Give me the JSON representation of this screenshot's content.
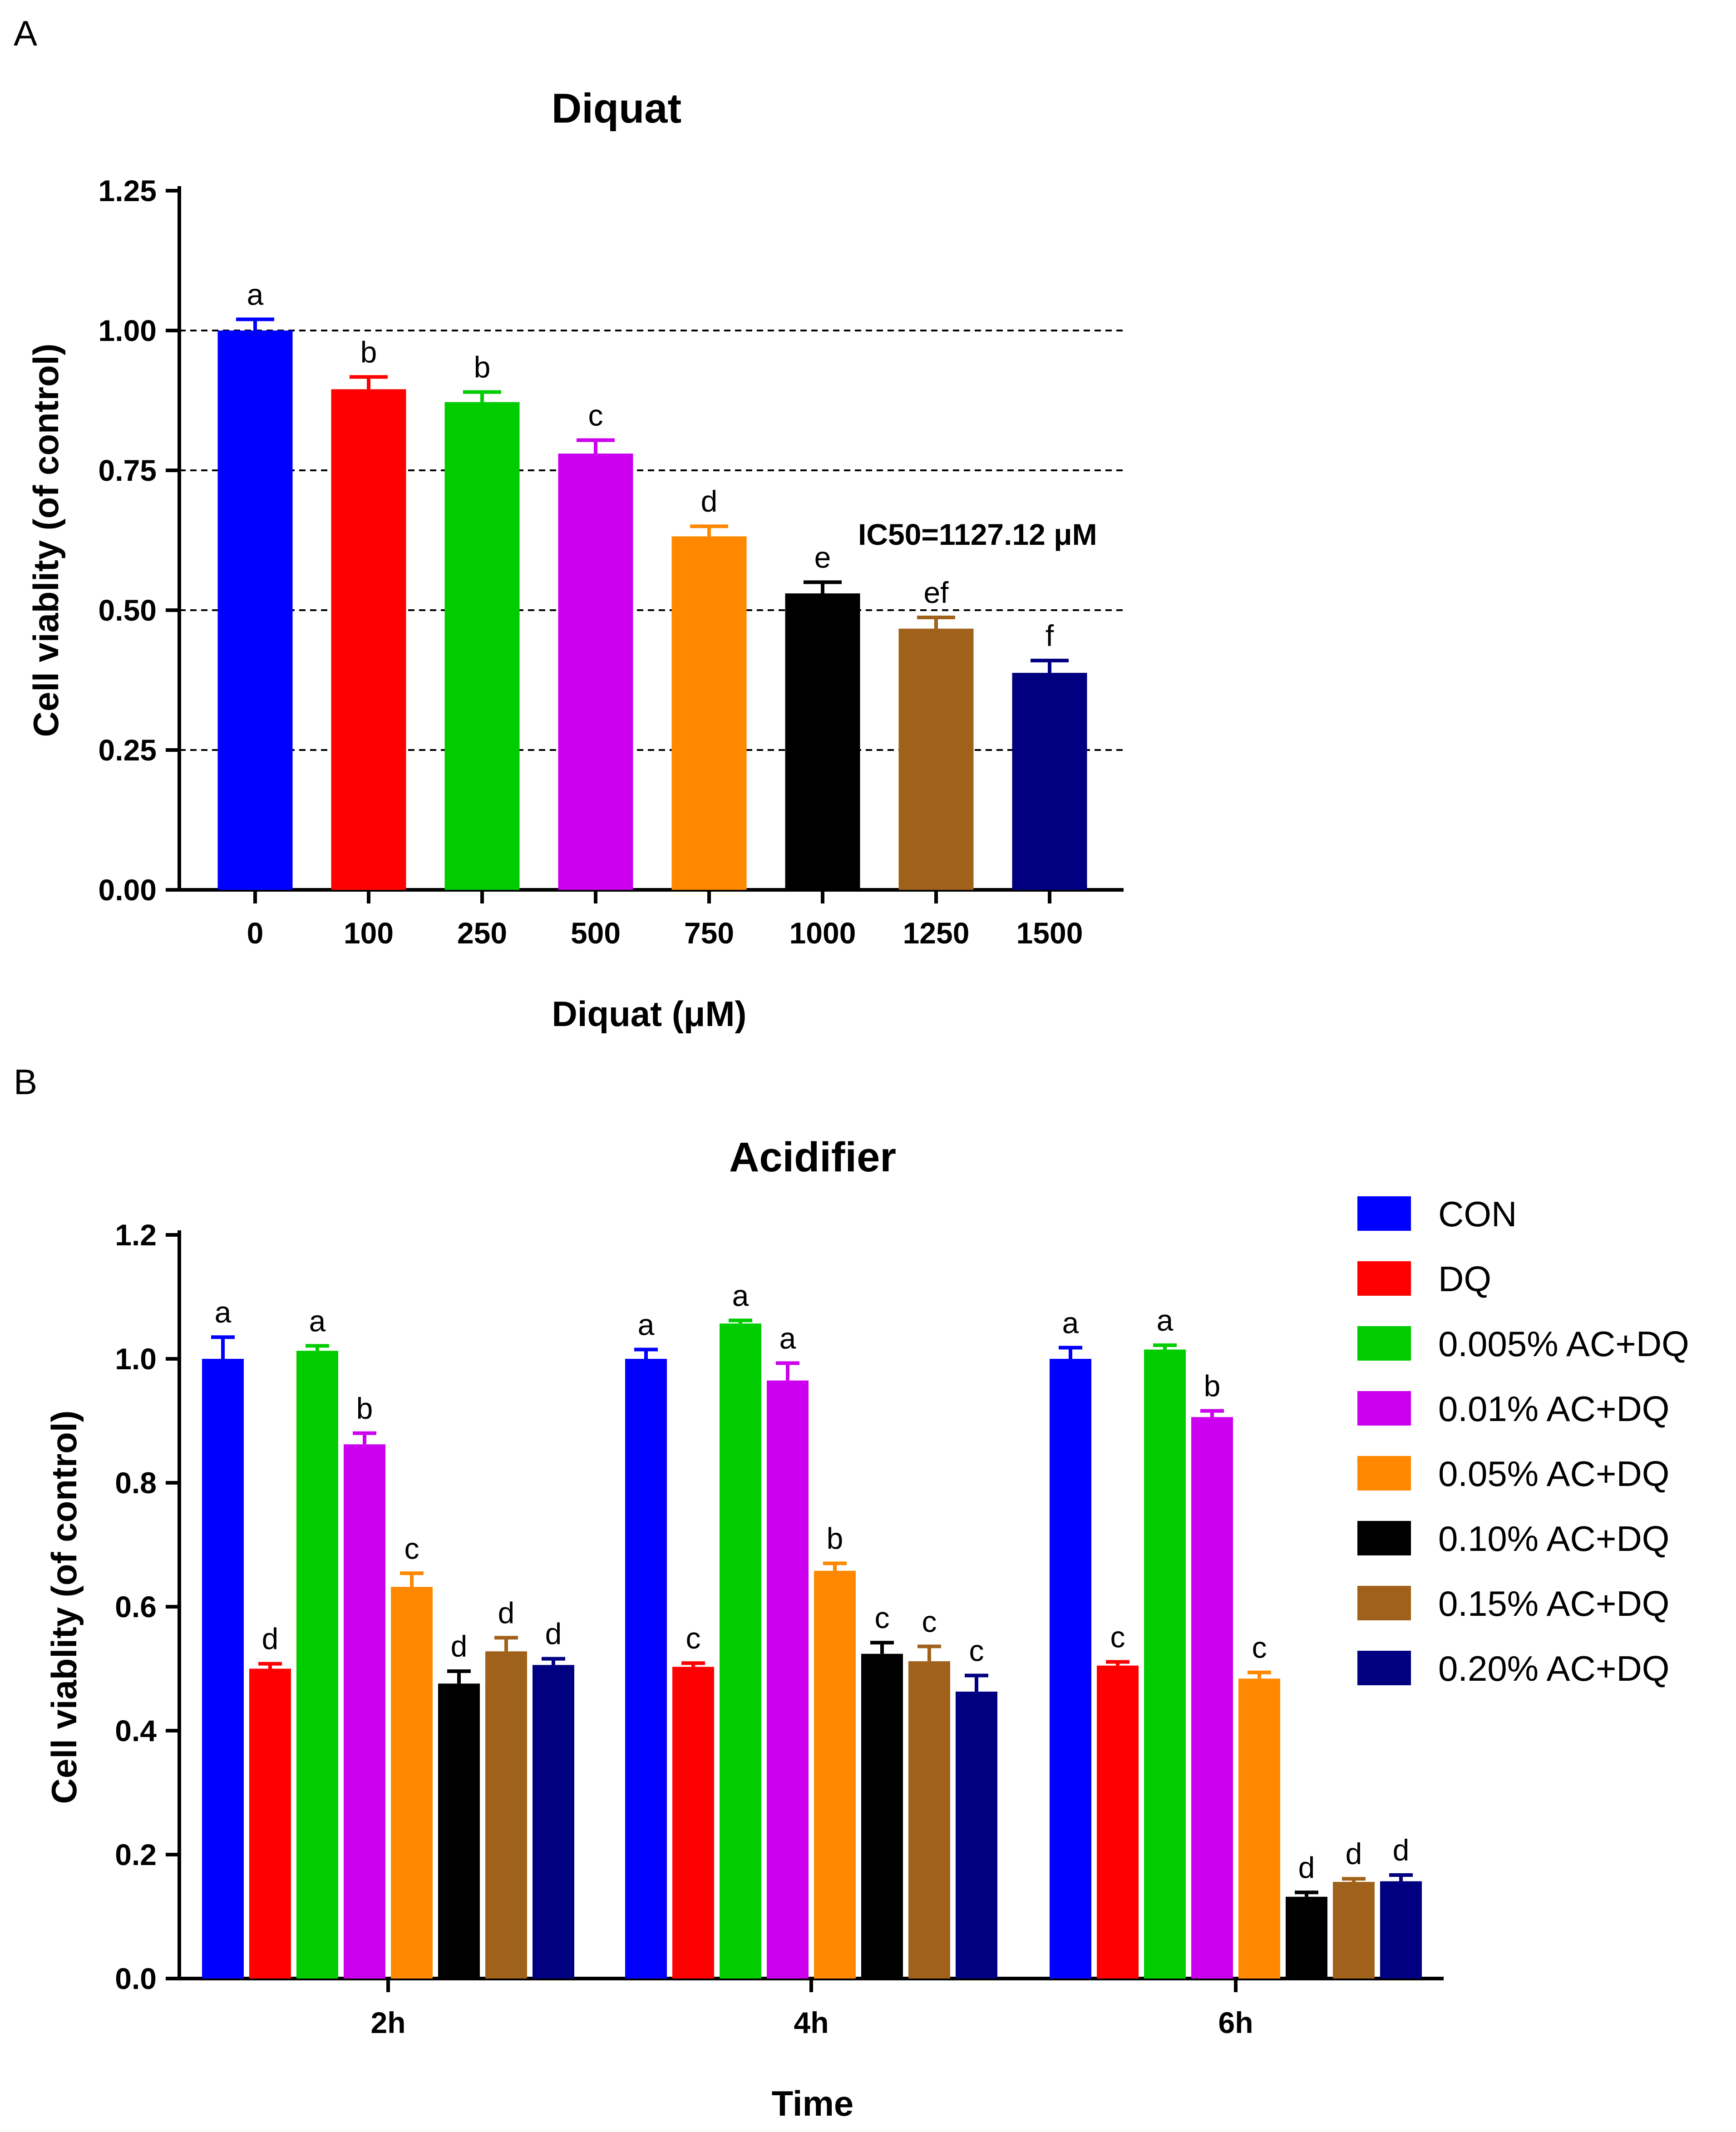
{
  "figure": {
    "panel_a_label": "A",
    "panel_b_label": "B"
  },
  "chart_data": [
    {
      "type": "bar",
      "title": "Diquat",
      "xlabel": "Diquat (μM)",
      "ylabel": "Cell viablity (of control)",
      "ylim": [
        0,
        1.25
      ],
      "yticks": [
        "0.00",
        "0.25",
        "0.50",
        "0.75",
        "1.00",
        "1.25"
      ],
      "grid": "dashed horizontal at 0.25, 0.50, 0.75, 1.00",
      "categories": [
        "0",
        "100",
        "250",
        "500",
        "750",
        "1000",
        "1250",
        "1500"
      ],
      "values": [
        1.0,
        0.895,
        0.872,
        0.78,
        0.632,
        0.53,
        0.467,
        0.388
      ],
      "errors": [
        0.02,
        0.022,
        0.018,
        0.024,
        0.018,
        0.02,
        0.02,
        0.022
      ],
      "letters": [
        "a",
        "b",
        "b",
        "c",
        "d",
        "e",
        "ef",
        "f"
      ],
      "colors": [
        "#0000FF",
        "#FF0000",
        "#00CC00",
        "#CC00EE",
        "#FF8800",
        "#000000",
        "#A0621A",
        "#000080"
      ],
      "annotation": "IC50=1127.12 μM"
    },
    {
      "type": "bar",
      "title": "Acidifier",
      "xlabel": "Time",
      "ylabel": "Cell viablity (of control)",
      "ylim": [
        0,
        1.2
      ],
      "yticks": [
        "0.0",
        "0.2",
        "0.4",
        "0.6",
        "0.8",
        "1.0",
        "1.2"
      ],
      "categories": [
        "2h",
        "4h",
        "6h"
      ],
      "legend_position": "right",
      "series": [
        {
          "name": "CON",
          "color": "#0000FF",
          "values": [
            1.0,
            1.0,
            1.0
          ],
          "errors": [
            0.035,
            0.015,
            0.018
          ],
          "letters": [
            "a",
            "a",
            "a"
          ]
        },
        {
          "name": "DQ",
          "color": "#FF0000",
          "values": [
            0.5,
            0.503,
            0.505
          ],
          "errors": [
            0.008,
            0.006,
            0.006
          ],
          "letters": [
            "d",
            "c",
            "c"
          ]
        },
        {
          "name": "0.005% AC+DQ",
          "color": "#00CC00",
          "values": [
            1.013,
            1.057,
            1.015
          ],
          "errors": [
            0.008,
            0.005,
            0.007
          ],
          "letters": [
            "a",
            "a",
            "a"
          ]
        },
        {
          "name": "0.01% AC+DQ",
          "color": "#CC00EE",
          "values": [
            0.862,
            0.965,
            0.906
          ],
          "errors": [
            0.018,
            0.028,
            0.01
          ],
          "letters": [
            "b",
            "a",
            "b"
          ]
        },
        {
          "name": "0.05% AC+DQ",
          "color": "#FF8800",
          "values": [
            0.632,
            0.658,
            0.484
          ],
          "errors": [
            0.022,
            0.012,
            0.01
          ],
          "letters": [
            "c",
            "b",
            "c"
          ]
        },
        {
          "name": "0.10% AC+DQ",
          "color": "#000000",
          "values": [
            0.476,
            0.524,
            0.132
          ],
          "errors": [
            0.02,
            0.018,
            0.007
          ],
          "letters": [
            "d",
            "c",
            "d"
          ]
        },
        {
          "name": "0.15% AC+DQ",
          "color": "#A0621A",
          "values": [
            0.528,
            0.512,
            0.156
          ],
          "errors": [
            0.022,
            0.024,
            0.005
          ],
          "letters": [
            "d",
            "c",
            "d"
          ]
        },
        {
          "name": "0.20% AC+DQ",
          "color": "#000080",
          "values": [
            0.506,
            0.463,
            0.157
          ],
          "errors": [
            0.01,
            0.026,
            0.01
          ],
          "letters": [
            "d",
            "c",
            "d"
          ]
        }
      ]
    }
  ]
}
